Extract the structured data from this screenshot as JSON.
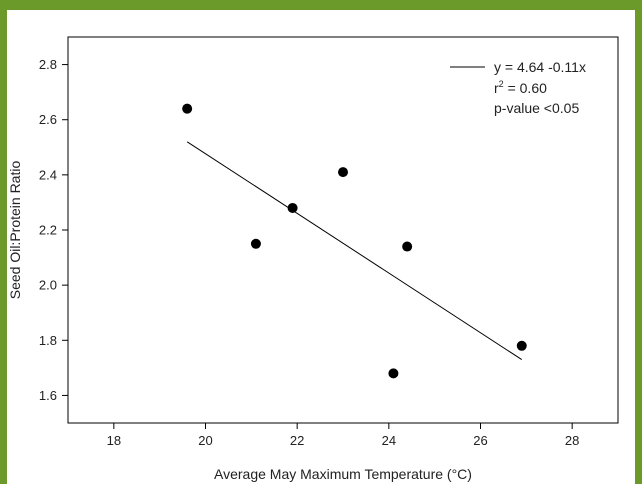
{
  "colors": {
    "border": "#6b9a2a",
    "points": "#000000",
    "line": "#000000"
  },
  "chart_data": {
    "type": "scatter",
    "title": "",
    "xlabel": "Average May Maximum Temperature (°C)",
    "ylabel": "Seed Oil:Protein Ratio",
    "xlim": [
      17,
      29
    ],
    "ylim": [
      1.5,
      2.9
    ],
    "xticks": [
      18,
      20,
      22,
      24,
      26,
      28
    ],
    "yticks": [
      1.6,
      1.8,
      2.0,
      2.2,
      2.4,
      2.6,
      2.8
    ],
    "xtick_labels": [
      "18",
      "20",
      "22",
      "24",
      "26",
      "28"
    ],
    "ytick_labels": [
      "1.6",
      "1.8",
      "2.0",
      "2.2",
      "2.4",
      "2.6",
      "2.8"
    ],
    "grid": false,
    "legend_position": "top-right",
    "series": [
      {
        "type": "scatter",
        "points": [
          {
            "x": 19.6,
            "y": 2.64
          },
          {
            "x": 21.1,
            "y": 2.15
          },
          {
            "x": 21.9,
            "y": 2.28
          },
          {
            "x": 23.0,
            "y": 2.41
          },
          {
            "x": 24.1,
            "y": 1.68
          },
          {
            "x": 24.4,
            "y": 2.14
          },
          {
            "x": 26.9,
            "y": 1.78
          }
        ]
      },
      {
        "type": "line",
        "points": [
          {
            "x": 19.6,
            "y": 2.52
          },
          {
            "x": 26.9,
            "y": 1.73
          }
        ]
      }
    ],
    "legend": {
      "equation": "y = 4.64 -0.11x",
      "r2_prefix": "r",
      "r2_sup": "2",
      "r2_suffix": " = 0.60",
      "pvalue": "p-value <0.05"
    }
  }
}
